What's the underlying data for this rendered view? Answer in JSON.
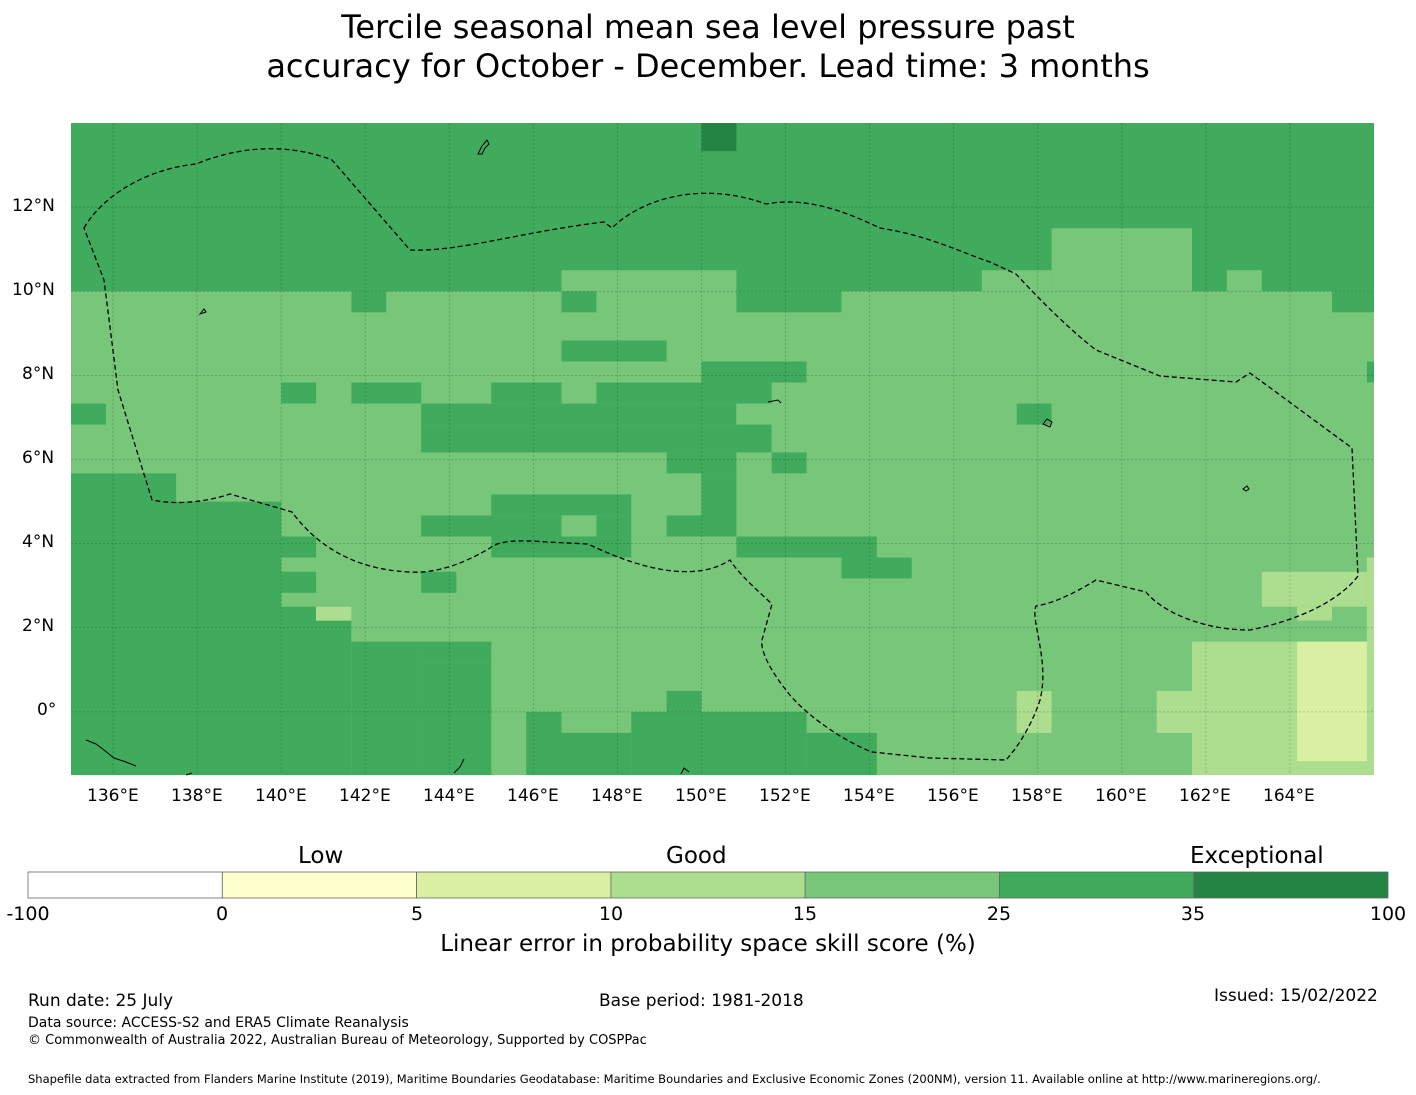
{
  "title_line1": "Tercile seasonal mean sea level pressure past",
  "title_line2": "accuracy for October - December. Lead time: 3 months",
  "map": {
    "lon_labels": [
      "136°E",
      "138°E",
      "140°E",
      "142°E",
      "144°E",
      "146°E",
      "148°E",
      "150°E",
      "152°E",
      "154°E",
      "156°E",
      "158°E",
      "160°E",
      "162°E",
      "164°E"
    ],
    "lat_labels": [
      "12°N",
      "10°N",
      "8°N",
      "6°N",
      "4°N",
      "2°N",
      "0°"
    ],
    "lon_range": [
      135.0,
      166.0
    ],
    "lat_range": [
      -1.5,
      14.0
    ],
    "lon_ticks": [
      136,
      138,
      140,
      142,
      144,
      146,
      148,
      150,
      152,
      154,
      156,
      158,
      160,
      162,
      164
    ],
    "lat_ticks": [
      12,
      10,
      8,
      6,
      4,
      2,
      0
    ],
    "background_level": 4,
    "skill_regions": [
      {
        "level": 5,
        "lon": [
          135.0,
          166.0
        ],
        "lat": [
          10.0,
          14.0
        ]
      },
      {
        "level": 6,
        "lon": [
          150.0,
          150.83
        ],
        "lat": [
          13.33,
          14.0
        ]
      },
      {
        "level": 4,
        "lon": [
          146.67,
          150.83
        ],
        "lat": [
          9.5,
          10.5
        ]
      },
      {
        "level": 4,
        "lon": [
          156.67,
          158.33
        ],
        "lat": [
          9.5,
          10.5
        ]
      },
      {
        "level": 4,
        "lon": [
          153.33,
          156.67
        ],
        "lat": [
          9.5,
          10.0
        ]
      },
      {
        "level": 4,
        "lon": [
          158.33,
          161.67
        ],
        "lat": [
          10.0,
          11.5
        ]
      },
      {
        "level": 4,
        "lon": [
          162.5,
          163.33
        ],
        "lat": [
          10.0,
          10.5
        ]
      },
      {
        "level": 5,
        "lon": [
          141.67,
          142.5
        ],
        "lat": [
          9.5,
          10.0
        ]
      },
      {
        "level": 5,
        "lon": [
          146.67,
          147.5
        ],
        "lat": [
          9.5,
          10.0
        ]
      },
      {
        "level": 5,
        "lon": [
          150.83,
          153.33
        ],
        "lat": [
          9.5,
          10.0
        ]
      },
      {
        "level": 5,
        "lon": [
          165.0,
          166.0
        ],
        "lat": [
          9.5,
          10.0
        ]
      },
      {
        "level": 5,
        "lon": [
          146.67,
          149.17
        ],
        "lat": [
          8.33,
          8.83
        ]
      },
      {
        "level": 5,
        "lon": [
          150.0,
          152.5
        ],
        "lat": [
          7.83,
          8.33
        ]
      },
      {
        "level": 5,
        "lon": [
          165.83,
          166.0
        ],
        "lat": [
          7.83,
          8.33
        ]
      },
      {
        "level": 5,
        "lon": [
          140.0,
          140.83
        ],
        "lat": [
          7.33,
          7.83
        ]
      },
      {
        "level": 5,
        "lon": [
          141.67,
          143.33
        ],
        "lat": [
          7.33,
          7.83
        ]
      },
      {
        "level": 5,
        "lon": [
          145.0,
          146.67
        ],
        "lat": [
          7.33,
          7.83
        ]
      },
      {
        "level": 5,
        "lon": [
          147.5,
          151.67
        ],
        "lat": [
          7.33,
          7.83
        ]
      },
      {
        "level": 5,
        "lon": [
          135.0,
          135.83
        ],
        "lat": [
          6.83,
          7.33
        ]
      },
      {
        "level": 5,
        "lon": [
          143.33,
          150.83
        ],
        "lat": [
          6.83,
          7.33
        ]
      },
      {
        "level": 5,
        "lon": [
          157.5,
          158.33
        ],
        "lat": [
          6.83,
          7.33
        ]
      },
      {
        "level": 5,
        "lon": [
          143.33,
          151.67
        ],
        "lat": [
          6.17,
          6.83
        ]
      },
      {
        "level": 5,
        "lon": [
          149.17,
          150.83
        ],
        "lat": [
          5.67,
          6.17
        ]
      },
      {
        "level": 5,
        "lon": [
          151.67,
          152.5
        ],
        "lat": [
          5.67,
          6.17
        ]
      },
      {
        "level": 5,
        "lon": [
          135.0,
          137.5
        ],
        "lat": [
          4.5,
          5.67
        ]
      },
      {
        "level": 5,
        "lon": [
          135.0,
          140.0
        ],
        "lat": [
          -1.5,
          5.0
        ]
      },
      {
        "level": 5,
        "lon": [
          140.0,
          140.83
        ],
        "lat": [
          -1.5,
          2.5
        ]
      },
      {
        "level": 5,
        "lon": [
          140.0,
          140.83
        ],
        "lat": [
          3.67,
          4.17
        ]
      },
      {
        "level": 5,
        "lon": [
          140.0,
          140.83
        ],
        "lat": [
          2.83,
          3.33
        ]
      },
      {
        "level": 5,
        "lon": [
          140.83,
          141.67
        ],
        "lat": [
          -1.5,
          2.17
        ]
      },
      {
        "level": 5,
        "lon": [
          141.67,
          143.33
        ],
        "lat": [
          -1.5,
          1.67
        ]
      },
      {
        "level": 5,
        "lon": [
          143.33,
          145.0
        ],
        "lat": [
          -1.5,
          1.17
        ]
      },
      {
        "level": 5,
        "lon": [
          143.33,
          145.0
        ],
        "lat": [
          1.17,
          1.67
        ]
      },
      {
        "level": 5,
        "lon": [
          143.33,
          144.17
        ],
        "lat": [
          2.83,
          3.33
        ]
      },
      {
        "level": 5,
        "lon": [
          145.0,
          148.33
        ],
        "lat": [
          4.67,
          5.17
        ]
      },
      {
        "level": 5,
        "lon": [
          143.33,
          146.67
        ],
        "lat": [
          4.17,
          4.67
        ]
      },
      {
        "level": 5,
        "lon": [
          147.5,
          148.33
        ],
        "lat": [
          4.17,
          4.67
        ]
      },
      {
        "level": 5,
        "lon": [
          149.17,
          150.83
        ],
        "lat": [
          4.17,
          4.67
        ]
      },
      {
        "level": 5,
        "lon": [
          145.0,
          148.33
        ],
        "lat": [
          3.67,
          4.17
        ]
      },
      {
        "level": 5,
        "lon": [
          150.83,
          154.17
        ],
        "lat": [
          3.67,
          4.17
        ]
      },
      {
        "level": 5,
        "lon": [
          153.33,
          155.0
        ],
        "lat": [
          3.17,
          3.67
        ]
      },
      {
        "level": 5,
        "lon": [
          150.0,
          150.83
        ],
        "lat": [
          4.67,
          5.67
        ]
      },
      {
        "level": 5,
        "lon": [
          149.17,
          150.0
        ],
        "lat": [
          0.0,
          0.5
        ]
      },
      {
        "level": 5,
        "lon": [
          145.83,
          146.67
        ],
        "lat": [
          -1.5,
          0.0
        ]
      },
      {
        "level": 5,
        "lon": [
          146.67,
          148.33
        ],
        "lat": [
          -1.5,
          -0.5
        ]
      },
      {
        "level": 5,
        "lon": [
          148.33,
          152.5
        ],
        "lat": [
          -1.5,
          0.0
        ]
      },
      {
        "level": 5,
        "lon": [
          152.5,
          154.17
        ],
        "lat": [
          -1.5,
          -0.5
        ]
      },
      {
        "level": 3,
        "lon": [
          140.83,
          141.67
        ],
        "lat": [
          2.17,
          2.5
        ]
      },
      {
        "level": 3,
        "lon": [
          163.33,
          165.83
        ],
        "lat": [
          2.5,
          3.33
        ]
      },
      {
        "level": 3,
        "lon": [
          164.17,
          165.0
        ],
        "lat": [
          2.17,
          2.5
        ]
      },
      {
        "level": 3,
        "lon": [
          165.83,
          166.0
        ],
        "lat": [
          -1.5,
          3.67
        ]
      },
      {
        "level": 3,
        "lon": [
          161.67,
          166.0
        ],
        "lat": [
          -1.5,
          1.67
        ]
      },
      {
        "level": 3,
        "lon": [
          160.83,
          161.67
        ],
        "lat": [
          -0.5,
          0.5
        ]
      },
      {
        "level": 3,
        "lon": [
          157.5,
          158.33
        ],
        "lat": [
          -0.5,
          0.5
        ]
      },
      {
        "level": 2,
        "lon": [
          164.17,
          165.83
        ],
        "lat": [
          -1.17,
          1.67
        ]
      }
    ],
    "colorbar": {
      "categories": [
        "Low",
        "Good",
        "Exceptional"
      ],
      "tick_labels": [
        "-100",
        "0",
        "5",
        "10",
        "15",
        "25",
        "35",
        "100"
      ],
      "colors": [
        "#ffffff",
        "#ffffcc",
        "#d9f0a3",
        "#addd8e",
        "#78c679",
        "#41ab5d",
        "#238443"
      ],
      "label": "Linear error in probability space skill score (%)"
    }
  },
  "footer": {
    "run_date": "Run date: 25 July",
    "base_period": "Base period: 1981-2018",
    "issued": "Issued: 15/02/2022",
    "data_source": "Data source: ACCESS-S2 and ERA5 Climate Reanalysis",
    "copyright": "© Commonwealth of Australia 2022, Australian Bureau of Meteorology, Supported by COSPPac",
    "shapefile": "Shapefile data extracted from Flanders Marine Institute (2019), Maritime Boundaries Geodatabase: Maritime Boundaries and Exclusive Economic Zones (200NM), version 11. Available online at http://www.marineregions.org/."
  }
}
